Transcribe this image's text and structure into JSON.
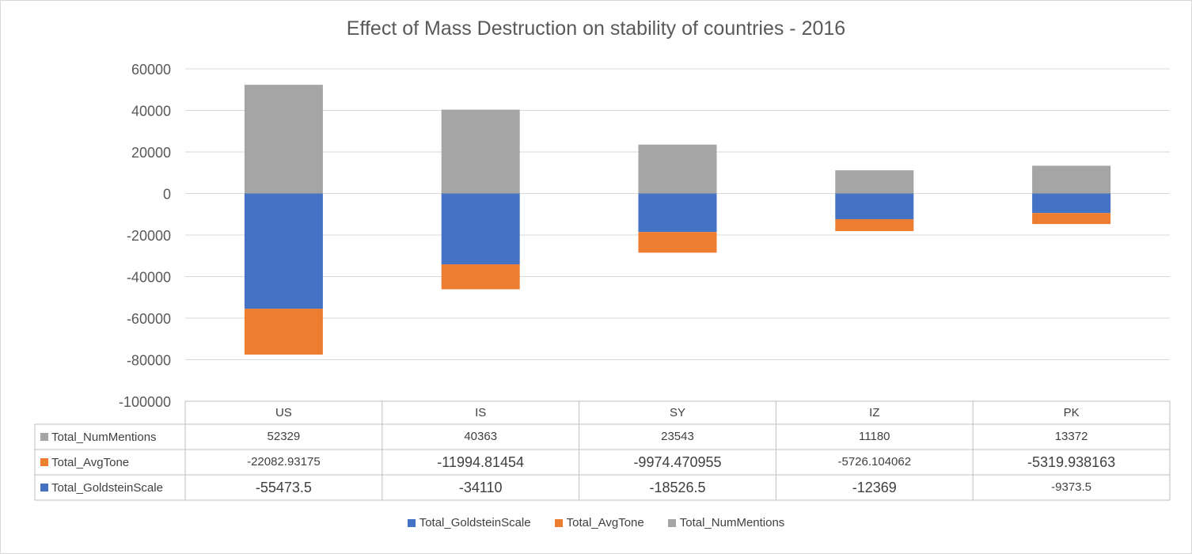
{
  "chart_data": {
    "type": "bar",
    "stacked": true,
    "title": "Effect of Mass Destruction on stability of countries - 2016",
    "categories": [
      "US",
      "IS",
      "SY",
      "IZ",
      "PK"
    ],
    "ylim": [
      -100000,
      60000
    ],
    "yticks": [
      "60000",
      "40000",
      "20000",
      "0",
      "-20000",
      "-40000",
      "-60000",
      "-80000",
      "-100000"
    ],
    "grid": true,
    "legend_position": "bottom",
    "data_table": true,
    "series": [
      {
        "name": "Total_GoldsteinScale",
        "color": "#4472c4",
        "values": [
          -55473.5,
          -34110,
          -18526.5,
          -12369,
          -9373.5
        ],
        "labels": [
          "-55473.5",
          "-34110",
          "-18526.5",
          "-12369",
          "-9373.5"
        ]
      },
      {
        "name": "Total_AvgTone",
        "color": "#ed7d31",
        "values": [
          -22082.93175,
          -11994.81454,
          -9974.470955,
          -5726.104062,
          -5319.938163
        ],
        "labels": [
          "-22082.93175",
          "-11994.81454",
          "-9974.470955",
          "-5726.104062",
          "-5319.938163"
        ]
      },
      {
        "name": "Total_NumMentions",
        "color": "#a5a5a5",
        "values": [
          52329,
          40363,
          23543,
          11180,
          13372
        ],
        "labels": [
          "52329",
          "40363",
          "23543",
          "11180",
          "13372"
        ]
      }
    ]
  }
}
